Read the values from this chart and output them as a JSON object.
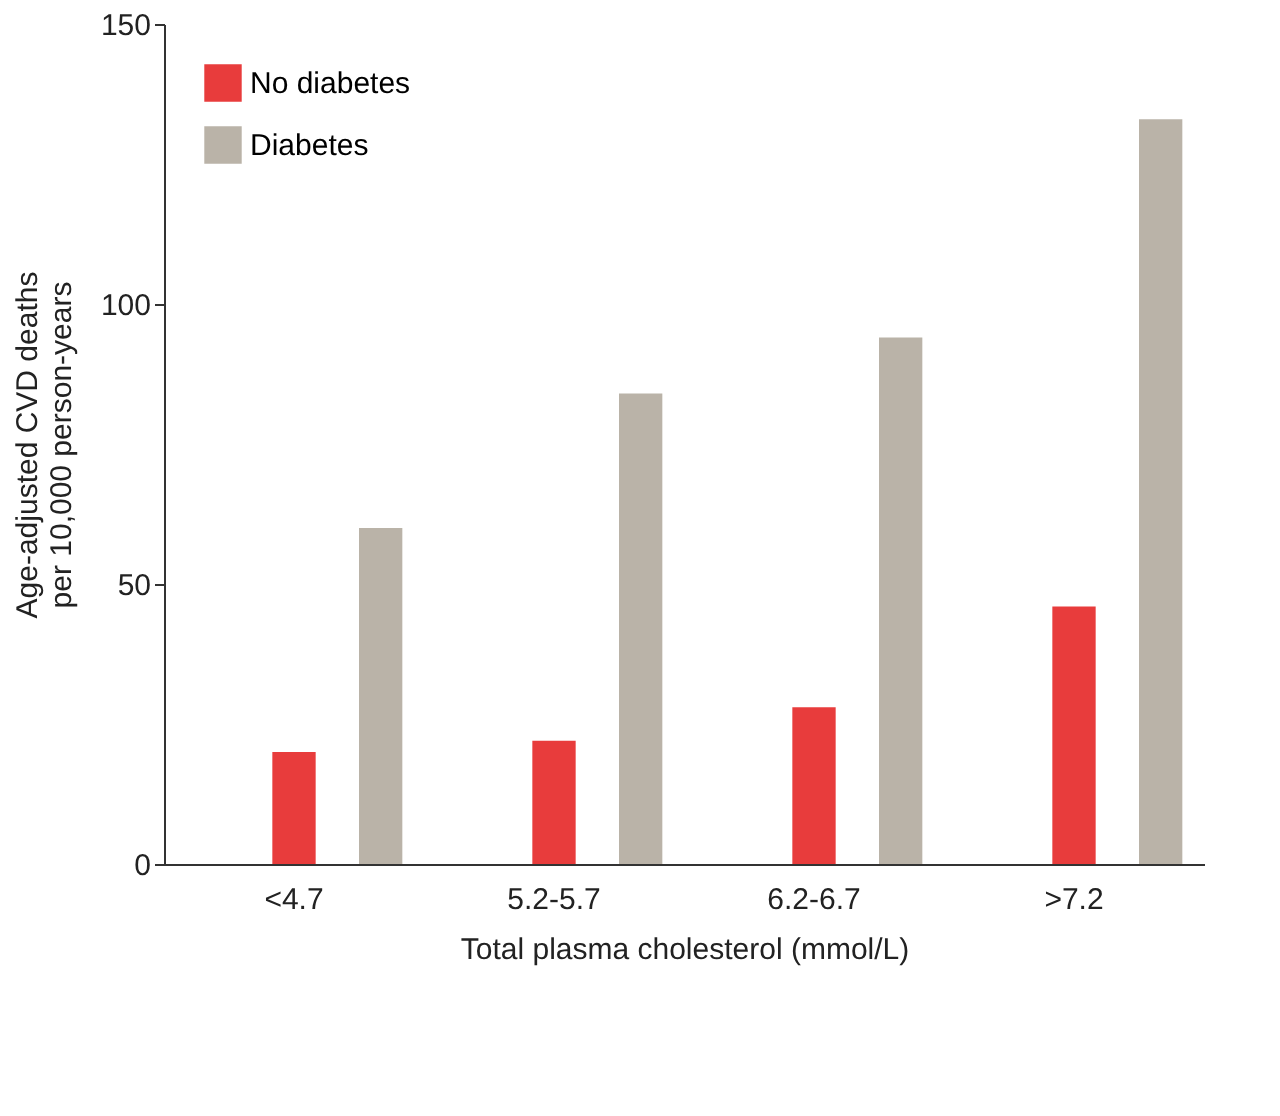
{
  "chart_data": {
    "type": "bar",
    "xlabel": "Total plasma cholesterol (mmol/L)",
    "ylabel": "Age-adjusted CVD deaths\nper 10,000 person-years",
    "categories": [
      "<4.7",
      "5.2-5.7",
      "6.2-6.7",
      ">7.2"
    ],
    "series": [
      {
        "name": "No diabetes",
        "color": "#e83c3c",
        "values": [
          20,
          22,
          28,
          46
        ]
      },
      {
        "name": "Diabetes",
        "color": "#bab3a8",
        "values": [
          60,
          84,
          94,
          133
        ]
      }
    ],
    "ylim": [
      0,
      150
    ],
    "yticks": [
      0,
      50,
      100,
      150
    ],
    "grid": false,
    "legend": "top left"
  }
}
